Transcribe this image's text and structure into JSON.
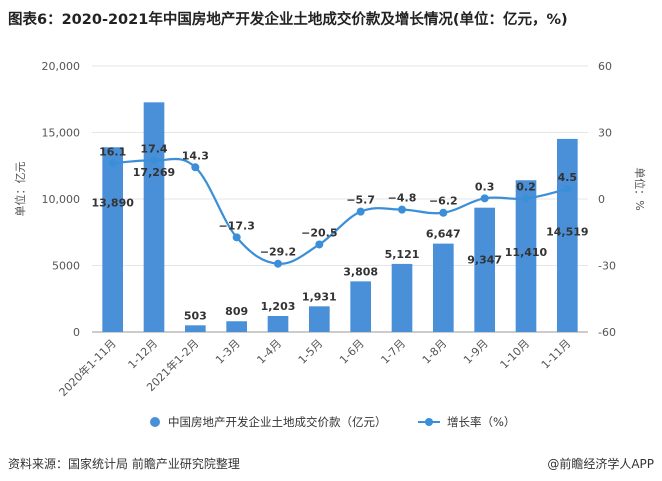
{
  "title": "图表6：2020-2021年中国房地产开发企业土地成交价款及增长情况(单位：亿元，%)",
  "chart_data": {
    "type": "bar",
    "categories": [
      "2020年1-11月",
      "1-12月",
      "2021年1-2月",
      "1-3月",
      "1-4月",
      "1-5月",
      "1-6月",
      "1-7月",
      "1-8月",
      "1-9月",
      "1-10月",
      "1-11月"
    ],
    "series": [
      {
        "name": "中国房地产开发企业土地成交价款（亿元）",
        "type": "bar",
        "axis": "left",
        "values": [
          13890,
          17269,
          503,
          809,
          1203,
          1931,
          3808,
          5121,
          6647,
          9347,
          11410,
          14519
        ],
        "labels": [
          "13,890",
          "17,269",
          "503",
          "809",
          "1,203",
          "1,931",
          "3,808",
          "5,121",
          "6,647",
          "9,347",
          "11,410",
          "14,519"
        ]
      },
      {
        "name": "增长率（%）",
        "type": "line",
        "axis": "right",
        "values": [
          16.1,
          17.4,
          14.3,
          -17.3,
          -29.2,
          -20.5,
          -5.7,
          -4.8,
          -6.2,
          0.3,
          0.2,
          4.5
        ],
        "labels": [
          "16.1",
          "17.4",
          "14.3",
          "−17.3",
          "−29.2",
          "−20.5",
          "−5.7",
          "−4.8",
          "−6.2",
          "0.3",
          "0.2",
          "4.5"
        ]
      }
    ],
    "y_left": {
      "label": "单位：亿元",
      "range": [
        0,
        20000
      ],
      "ticks": [
        0,
        5000,
        10000,
        15000,
        20000
      ],
      "tick_labels": [
        "0",
        "5000",
        "10,000",
        "15,000",
        "20,000"
      ]
    },
    "y_right": {
      "label": "单位：%",
      "range": [
        -60,
        60
      ],
      "ticks": [
        -60,
        -30,
        0,
        30,
        60
      ],
      "tick_labels": [
        "-60",
        "-30",
        "0",
        "30",
        "60"
      ]
    },
    "colors": {
      "bar": "#4a90d9",
      "line": "#3a8fd8",
      "grid": "#e6e6e6",
      "axis_text": "#555555",
      "label_text": "#333333"
    }
  },
  "legend": {
    "bar_label": "中国房地产开发企业土地成交价款（亿元）",
    "line_label": "增长率（%）"
  },
  "footer": {
    "source": "资料来源：国家统计局 前瞻产业研究院整理",
    "brand": "@前瞻经济学人APP"
  }
}
